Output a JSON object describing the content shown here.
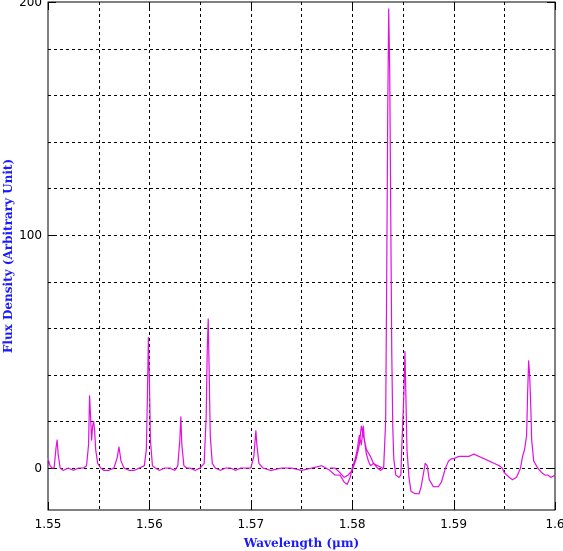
{
  "chart_data": {
    "type": "line",
    "title": "",
    "xlabel": "Wavelength (μm)",
    "ylabel": "Flux Density (Arbitrary Unit)",
    "xlim": [
      1.55,
      1.6
    ],
    "ylim": [
      -18,
      200
    ],
    "x_ticks": [
      1.55,
      1.56,
      1.57,
      1.58,
      1.59,
      1.6
    ],
    "x_tick_labels": [
      "1.55",
      "1.56",
      "1.57",
      "1.58",
      "1.59",
      "1.6"
    ],
    "y_ticks": [
      0,
      100,
      200
    ],
    "y_tick_labels": [
      "0",
      "100",
      "200"
    ],
    "grid": true,
    "grid_style": "dotted",
    "series_color": "#e010e0",
    "label_color": "#1a1aff",
    "series": [
      {
        "points": [
          [
            1.55,
            4
          ],
          [
            1.5502,
            1
          ],
          [
            1.5504,
            0
          ],
          [
            1.5506,
            0
          ],
          [
            1.5508,
            9
          ],
          [
            1.5509,
            12
          ],
          [
            1.551,
            6
          ],
          [
            1.5512,
            0
          ],
          [
            1.5515,
            -1
          ],
          [
            1.552,
            0
          ],
          [
            1.5525,
            -1
          ],
          [
            1.553,
            0
          ],
          [
            1.5535,
            0
          ],
          [
            1.5538,
            1
          ],
          [
            1.554,
            10
          ],
          [
            1.5541,
            31
          ],
          [
            1.5542,
            22
          ],
          [
            1.5543,
            12
          ],
          [
            1.5544,
            18
          ],
          [
            1.5545,
            20
          ],
          [
            1.5546,
            16
          ],
          [
            1.5547,
            8
          ],
          [
            1.5549,
            2
          ],
          [
            1.5552,
            0
          ],
          [
            1.5555,
            -1
          ],
          [
            1.556,
            -1
          ],
          [
            1.5565,
            0
          ],
          [
            1.5568,
            4
          ],
          [
            1.557,
            9
          ],
          [
            1.5572,
            3
          ],
          [
            1.5575,
            0
          ],
          [
            1.558,
            -1
          ],
          [
            1.5585,
            -1
          ],
          [
            1.559,
            0
          ],
          [
            1.5595,
            1
          ],
          [
            1.5597,
            8
          ],
          [
            1.5598,
            30
          ],
          [
            1.5599,
            56
          ],
          [
            1.56,
            38
          ],
          [
            1.5601,
            12
          ],
          [
            1.5603,
            1
          ],
          [
            1.5606,
            0
          ],
          [
            1.561,
            -1
          ],
          [
            1.5615,
            0
          ],
          [
            1.562,
            0
          ],
          [
            1.5625,
            -1
          ],
          [
            1.5628,
            1
          ],
          [
            1.563,
            12
          ],
          [
            1.5631,
            22
          ],
          [
            1.5632,
            10
          ],
          [
            1.5634,
            1
          ],
          [
            1.5637,
            0
          ],
          [
            1.564,
            0
          ],
          [
            1.5645,
            -1
          ],
          [
            1.565,
            0
          ],
          [
            1.5654,
            2
          ],
          [
            1.5656,
            22
          ],
          [
            1.5657,
            50
          ],
          [
            1.5658,
            64
          ],
          [
            1.5659,
            40
          ],
          [
            1.566,
            14
          ],
          [
            1.5662,
            2
          ],
          [
            1.5665,
            0
          ],
          [
            1.567,
            -1
          ],
          [
            1.5675,
            0
          ],
          [
            1.568,
            0
          ],
          [
            1.5685,
            -1
          ],
          [
            1.569,
            0
          ],
          [
            1.5695,
            0
          ],
          [
            1.57,
            0
          ],
          [
            1.5703,
            5
          ],
          [
            1.5705,
            16
          ],
          [
            1.5706,
            10
          ],
          [
            1.5708,
            2
          ],
          [
            1.5712,
            0
          ],
          [
            1.572,
            -1
          ],
          [
            1.573,
            0
          ],
          [
            1.574,
            0
          ],
          [
            1.575,
            -1
          ],
          [
            1.576,
            0
          ],
          [
            1.577,
            1
          ],
          [
            1.5778,
            -1
          ],
          [
            1.5783,
            -3
          ],
          [
            1.5788,
            -3
          ],
          [
            1.5792,
            -6
          ],
          [
            1.5795,
            -7
          ],
          [
            1.5798,
            -4
          ],
          [
            1.58,
            0
          ],
          [
            1.5803,
            4
          ],
          [
            1.5805,
            8
          ],
          [
            1.5807,
            14
          ],
          [
            1.5809,
            10
          ],
          [
            1.5811,
            18
          ],
          [
            1.5812,
            12
          ],
          [
            1.5814,
            6
          ],
          [
            1.5816,
            3
          ],
          [
            1.5818,
            1
          ],
          [
            1.5821,
            2
          ],
          [
            1.5825,
            0
          ],
          [
            1.5828,
            -1
          ],
          [
            1.5831,
            0
          ],
          [
            1.5833,
            20
          ],
          [
            1.5834,
            80
          ],
          [
            1.5835,
            150
          ],
          [
            1.5836,
            197
          ],
          [
            1.5837,
            170
          ],
          [
            1.5838,
            110
          ],
          [
            1.5839,
            50
          ],
          [
            1.584,
            18
          ],
          [
            1.5841,
            4
          ],
          [
            1.5843,
            -3
          ],
          [
            1.5846,
            -4
          ],
          [
            1.5848,
            -3
          ],
          [
            1.5849,
            10
          ],
          [
            1.5851,
            32
          ],
          [
            1.5852,
            50
          ],
          [
            1.5853,
            30
          ],
          [
            1.5854,
            8
          ],
          [
            1.5856,
            -4
          ],
          [
            1.5858,
            -10
          ],
          [
            1.5862,
            -11
          ],
          [
            1.5866,
            -11
          ],
          [
            1.5868,
            -8
          ],
          [
            1.587,
            -3
          ],
          [
            1.5872,
            2
          ],
          [
            1.5874,
            1
          ],
          [
            1.5876,
            -5
          ],
          [
            1.588,
            -8
          ],
          [
            1.5885,
            -8
          ],
          [
            1.5888,
            -6
          ],
          [
            1.589,
            -3
          ],
          [
            1.5892,
            0
          ],
          [
            1.5895,
            3
          ],
          [
            1.5898,
            4
          ],
          [
            1.59,
            4
          ],
          [
            1.5905,
            5
          ],
          [
            1.591,
            5
          ],
          [
            1.5915,
            5
          ],
          [
            1.592,
            6
          ],
          [
            1.5925,
            5
          ],
          [
            1.593,
            4
          ],
          [
            1.5935,
            3
          ],
          [
            1.594,
            2
          ],
          [
            1.5945,
            1
          ],
          [
            1.5948,
            0
          ],
          [
            1.595,
            -2
          ],
          [
            1.5955,
            -4
          ],
          [
            1.5958,
            -5
          ],
          [
            1.5962,
            -4
          ],
          [
            1.5966,
            0
          ],
          [
            1.5968,
            5
          ],
          [
            1.597,
            8
          ],
          [
            1.5972,
            14
          ],
          [
            1.5973,
            32
          ],
          [
            1.5974,
            46
          ],
          [
            1.5975,
            40
          ],
          [
            1.5976,
            28
          ],
          [
            1.5977,
            12
          ],
          [
            1.5979,
            3
          ],
          [
            1.5983,
            0
          ],
          [
            1.5987,
            -2
          ],
          [
            1.599,
            -3
          ],
          [
            1.5993,
            -3
          ],
          [
            1.5996,
            -4
          ],
          [
            1.6,
            -3
          ]
        ]
      },
      {
        "points": [
          [
            1.5778,
            0
          ],
          [
            1.5783,
            0
          ],
          [
            1.5788,
            -2
          ],
          [
            1.5792,
            -4
          ],
          [
            1.5796,
            -3
          ],
          [
            1.58,
            -1
          ],
          [
            1.5804,
            4
          ],
          [
            1.5807,
            10
          ],
          [
            1.5809,
            18
          ],
          [
            1.5811,
            14
          ],
          [
            1.5814,
            8
          ],
          [
            1.5818,
            5
          ],
          [
            1.5821,
            2
          ],
          [
            1.5825,
            1
          ],
          [
            1.583,
            0
          ]
        ]
      }
    ]
  }
}
